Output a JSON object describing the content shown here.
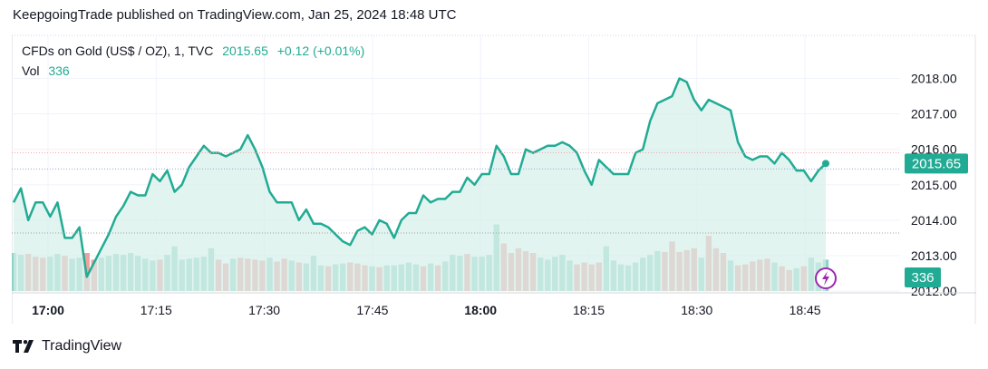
{
  "header": {
    "published_line": "KeepgoingTrade published on TradingView.com, Jan 25, 2024 18:48 UTC"
  },
  "legend": {
    "symbol": "CFDs on Gold (US$ / OZ), 1, TVC",
    "price": "2015.65",
    "change": "+0.12 (+0.01%)",
    "vol_label": "Vol",
    "vol_value": "336"
  },
  "footer": {
    "brand": "TradingView"
  },
  "colors": {
    "line": "#22ab94",
    "area": "#d5efea",
    "vol_up": "#8fd2c6",
    "vol_down": "#eea2a0",
    "grid": "#f0f3fa",
    "price_tag": "#22ab94",
    "flash_icon": "#9c27b0"
  },
  "icons": {
    "flash": "lightning-bolt-icon",
    "brand": "tradingview-logo-icon"
  },
  "chart_data": {
    "type": "line",
    "title": "CFDs on Gold (US$ / OZ), 1, TVC",
    "ylim": [
      2012,
      2018.5
    ],
    "y_ticks": [
      "2018.00",
      "2017.00",
      "2016.00",
      "2015.00",
      "2014.00",
      "2013.00",
      "2012.00"
    ],
    "x_ticks": [
      {
        "label": "17:00",
        "bold": true
      },
      {
        "label": "17:15",
        "bold": false
      },
      {
        "label": "17:30",
        "bold": false
      },
      {
        "label": "17:45",
        "bold": false
      },
      {
        "label": "18:00",
        "bold": true
      },
      {
        "label": "18:15",
        "bold": false
      },
      {
        "label": "18:30",
        "bold": false
      },
      {
        "label": "18:45",
        "bold": false
      }
    ],
    "last_price_label": "2015.65",
    "last_volume_label": "336",
    "price_close": [
      2014.5,
      2014.9,
      2014.0,
      2014.5,
      2014.5,
      2014.1,
      2014.5,
      2013.5,
      2013.5,
      2013.8,
      2012.4,
      2012.8,
      2013.2,
      2013.6,
      2014.1,
      2014.4,
      2014.8,
      2014.7,
      2014.7,
      2015.3,
      2015.1,
      2015.4,
      2014.8,
      2015.0,
      2015.5,
      2015.8,
      2016.1,
      2015.9,
      2015.9,
      2015.8,
      2015.9,
      2016.0,
      2016.4,
      2016.0,
      2015.5,
      2014.8,
      2014.5,
      2014.5,
      2014.5,
      2014.0,
      2014.3,
      2013.9,
      2013.9,
      2013.8,
      2013.6,
      2013.4,
      2013.3,
      2013.7,
      2013.8,
      2013.6,
      2014.0,
      2013.9,
      2013.5,
      2014.0,
      2014.2,
      2014.2,
      2014.7,
      2014.5,
      2014.6,
      2014.6,
      2014.8,
      2014.8,
      2015.2,
      2015.0,
      2015.3,
      2015.3,
      2016.1,
      2015.8,
      2015.3,
      2015.3,
      2016.0,
      2015.9,
      2016.0,
      2016.1,
      2016.1,
      2016.2,
      2016.1,
      2015.9,
      2015.4,
      2015.0,
      2015.7,
      2015.5,
      2015.3,
      2015.3,
      2015.3,
      2015.9,
      2016.0,
      2016.8,
      2017.3,
      2017.4,
      2017.5,
      2018.0,
      2017.9,
      2017.4,
      2017.1,
      2017.4,
      2017.3,
      2017.2,
      2017.1,
      2016.2,
      2015.8,
      2015.7,
      2015.8,
      2015.8,
      2015.6,
      2015.9,
      2015.7,
      2015.4,
      2015.4,
      2015.1,
      2015.4,
      2015.6
    ],
    "volume": [
      {
        "v": 40,
        "up": true
      },
      {
        "v": 38,
        "up": true
      },
      {
        "v": 39,
        "up": false
      },
      {
        "v": 36,
        "up": false
      },
      {
        "v": 35,
        "up": false
      },
      {
        "v": 36,
        "up": true
      },
      {
        "v": 39,
        "up": true
      },
      {
        "v": 37,
        "up": false
      },
      {
        "v": 34,
        "up": true
      },
      {
        "v": 35,
        "up": true
      },
      {
        "v": 40,
        "up": false
      },
      {
        "v": 33,
        "up": false
      },
      {
        "v": 35,
        "up": true
      },
      {
        "v": 37,
        "up": true
      },
      {
        "v": 39,
        "up": true
      },
      {
        "v": 38,
        "up": true
      },
      {
        "v": 40,
        "up": true
      },
      {
        "v": 37,
        "up": true
      },
      {
        "v": 34,
        "up": true
      },
      {
        "v": 32,
        "up": true
      },
      {
        "v": 33,
        "up": false
      },
      {
        "v": 38,
        "up": true
      },
      {
        "v": 47,
        "up": true
      },
      {
        "v": 33,
        "up": true
      },
      {
        "v": 34,
        "up": true
      },
      {
        "v": 35,
        "up": true
      },
      {
        "v": 36,
        "up": true
      },
      {
        "v": 45,
        "up": true
      },
      {
        "v": 33,
        "up": false
      },
      {
        "v": 29,
        "up": false
      },
      {
        "v": 34,
        "up": true
      },
      {
        "v": 35,
        "up": false
      },
      {
        "v": 34,
        "up": false
      },
      {
        "v": 33,
        "up": false
      },
      {
        "v": 32,
        "up": false
      },
      {
        "v": 35,
        "up": true
      },
      {
        "v": 31,
        "up": false
      },
      {
        "v": 34,
        "up": false
      },
      {
        "v": 32,
        "up": true
      },
      {
        "v": 30,
        "up": false
      },
      {
        "v": 29,
        "up": true
      },
      {
        "v": 37,
        "up": true
      },
      {
        "v": 27,
        "up": true
      },
      {
        "v": 26,
        "up": false
      },
      {
        "v": 28,
        "up": true
      },
      {
        "v": 29,
        "up": true
      },
      {
        "v": 30,
        "up": false
      },
      {
        "v": 29,
        "up": false
      },
      {
        "v": 27,
        "up": false
      },
      {
        "v": 26,
        "up": true
      },
      {
        "v": 25,
        "up": false
      },
      {
        "v": 27,
        "up": true
      },
      {
        "v": 27,
        "up": true
      },
      {
        "v": 28,
        "up": true
      },
      {
        "v": 30,
        "up": true
      },
      {
        "v": 28,
        "up": true
      },
      {
        "v": 26,
        "up": false
      },
      {
        "v": 29,
        "up": true
      },
      {
        "v": 27,
        "up": false
      },
      {
        "v": 31,
        "up": true
      },
      {
        "v": 38,
        "up": true
      },
      {
        "v": 37,
        "up": true
      },
      {
        "v": 39,
        "up": false
      },
      {
        "v": 36,
        "up": true
      },
      {
        "v": 36,
        "up": true
      },
      {
        "v": 38,
        "up": true
      },
      {
        "v": 70,
        "up": true
      },
      {
        "v": 50,
        "up": false
      },
      {
        "v": 40,
        "up": false
      },
      {
        "v": 45,
        "up": false
      },
      {
        "v": 42,
        "up": false
      },
      {
        "v": 40,
        "up": false
      },
      {
        "v": 35,
        "up": true
      },
      {
        "v": 33,
        "up": true
      },
      {
        "v": 36,
        "up": true
      },
      {
        "v": 38,
        "up": true
      },
      {
        "v": 32,
        "up": true
      },
      {
        "v": 28,
        "up": false
      },
      {
        "v": 30,
        "up": false
      },
      {
        "v": 28,
        "up": false
      },
      {
        "v": 30,
        "up": false
      },
      {
        "v": 47,
        "up": true
      },
      {
        "v": 32,
        "up": true
      },
      {
        "v": 28,
        "up": true
      },
      {
        "v": 27,
        "up": true
      },
      {
        "v": 30,
        "up": true
      },
      {
        "v": 35,
        "up": true
      },
      {
        "v": 38,
        "up": true
      },
      {
        "v": 42,
        "up": true
      },
      {
        "v": 41,
        "up": false
      },
      {
        "v": 52,
        "up": false
      },
      {
        "v": 41,
        "up": false
      },
      {
        "v": 43,
        "up": false
      },
      {
        "v": 45,
        "up": false
      },
      {
        "v": 35,
        "up": true
      },
      {
        "v": 58,
        "up": false
      },
      {
        "v": 45,
        "up": false
      },
      {
        "v": 40,
        "up": false
      },
      {
        "v": 32,
        "up": true
      },
      {
        "v": 27,
        "up": false
      },
      {
        "v": 28,
        "up": false
      },
      {
        "v": 31,
        "up": false
      },
      {
        "v": 33,
        "up": false
      },
      {
        "v": 34,
        "up": false
      },
      {
        "v": 30,
        "up": true
      },
      {
        "v": 26,
        "up": false
      },
      {
        "v": 22,
        "up": false
      },
      {
        "v": 24,
        "up": true
      },
      {
        "v": 26,
        "up": false
      },
      {
        "v": 35,
        "up": true
      },
      {
        "v": 30,
        "up": true
      },
      {
        "v": 33,
        "up": true
      }
    ]
  }
}
